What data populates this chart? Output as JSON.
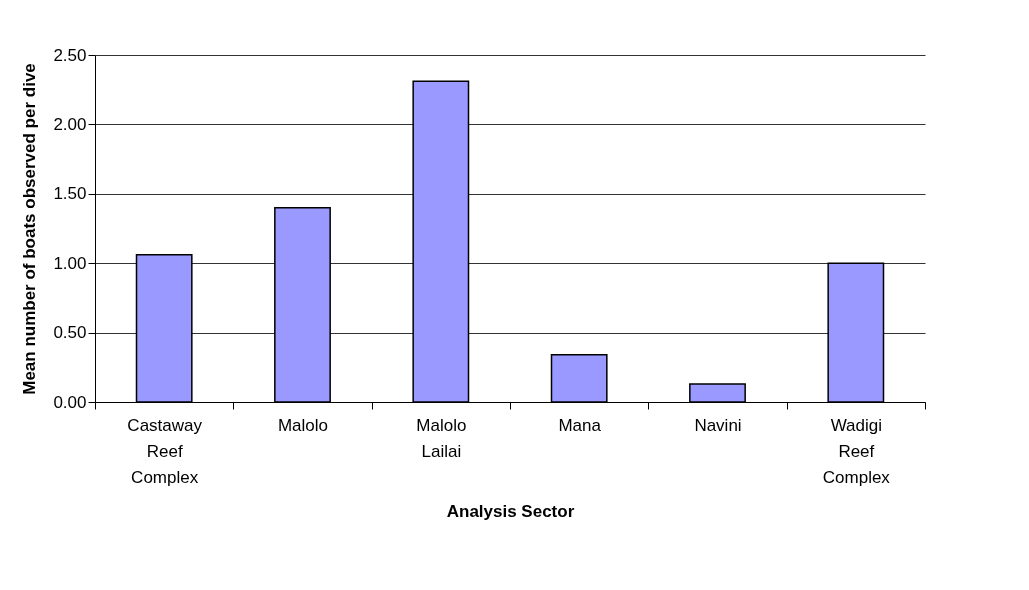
{
  "chart_data": {
    "type": "bar",
    "xlabel": "Analysis Sector",
    "ylabel": "Mean number of boats observed per dive",
    "categories": [
      "Castaway Reef Complex",
      "Malolo",
      "Malolo Lailai",
      "Mana",
      "Navini",
      "Wadigi Reef Complex"
    ],
    "values": [
      1.06,
      1.4,
      2.31,
      0.34,
      0.13,
      1.0
    ],
    "color": "#9999ff",
    "ylim": [
      0,
      2.5
    ],
    "yticks": [
      {
        "value": 0,
        "label": "0.00"
      },
      {
        "value": 0.5,
        "label": "0.50"
      },
      {
        "value": 1,
        "label": "1.00"
      },
      {
        "value": 1.5,
        "label": "1.50"
      },
      {
        "value": 2,
        "label": "2.00"
      },
      {
        "value": 2.5,
        "label": "2.50"
      }
    ],
    "grid": "y"
  }
}
